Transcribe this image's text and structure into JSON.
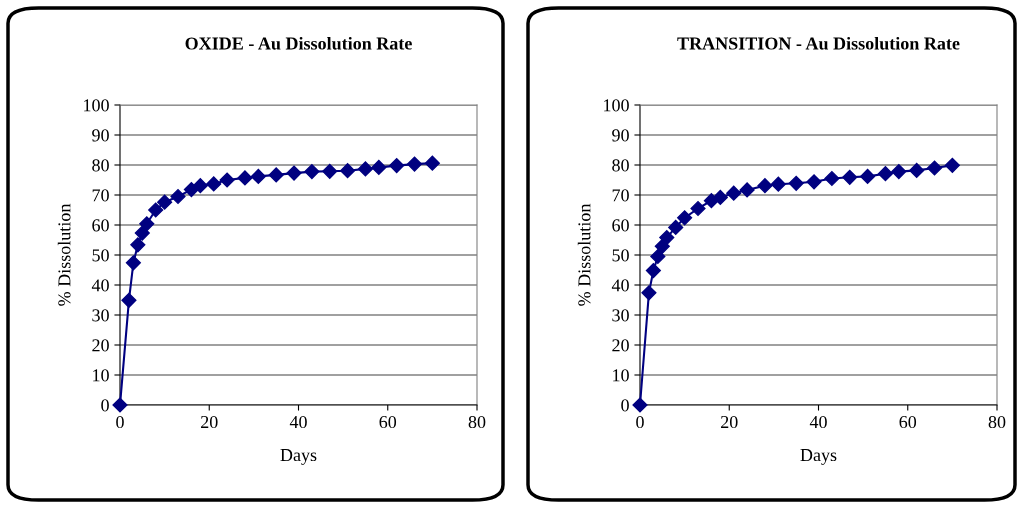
{
  "chart_data": [
    {
      "type": "line",
      "title": "OXIDE - Au Dissolution Rate",
      "xlabel": "Days",
      "ylabel": "% Dissolution",
      "xlim": [
        0,
        80
      ],
      "xticks": [
        0,
        20,
        40,
        60,
        80
      ],
      "ylim": [
        0,
        100
      ],
      "yticks": [
        0,
        10,
        20,
        30,
        40,
        50,
        60,
        70,
        80,
        90,
        100
      ],
      "grid": "y",
      "marker": "diamond",
      "line_style": "solid",
      "x": [
        0,
        2,
        3,
        4,
        5,
        6,
        8,
        10,
        13,
        16,
        18,
        21,
        24,
        28,
        31,
        35,
        39,
        43,
        47,
        51,
        55,
        58,
        62,
        66,
        70
      ],
      "series": [
        {
          "color": "#000080",
          "values": [
            0,
            34.9,
            47.4,
            53.4,
            57.3,
            60.4,
            65.0,
            67.6,
            69.5,
            71.8,
            73.1,
            73.7,
            75.0,
            75.7,
            76.2,
            76.7,
            77.3,
            77.8,
            77.9,
            78.1,
            78.7,
            79.2,
            79.8,
            80.3,
            80.6
          ]
        }
      ]
    },
    {
      "type": "line",
      "title": "TRANSITION - Au Dissolution Rate",
      "xlabel": "Days",
      "ylabel": "% Dissolution",
      "xlim": [
        0,
        80
      ],
      "xticks": [
        0,
        20,
        40,
        60,
        80
      ],
      "ylim": [
        0,
        100
      ],
      "yticks": [
        0,
        10,
        20,
        30,
        40,
        50,
        60,
        70,
        80,
        90,
        100
      ],
      "grid": "y",
      "marker": "diamond",
      "line_style": "solid",
      "x": [
        0,
        2,
        3,
        4,
        5,
        6,
        8,
        10,
        13,
        16,
        18,
        21,
        24,
        28,
        31,
        35,
        39,
        43,
        47,
        51,
        55,
        58,
        62,
        66,
        70
      ],
      "series": [
        {
          "color": "#000080",
          "values": [
            0,
            37.4,
            44.8,
            49.5,
            52.9,
            55.8,
            59.2,
            62.4,
            65.5,
            68.1,
            69.2,
            70.6,
            71.7,
            73.1,
            73.6,
            73.9,
            74.4,
            75.5,
            75.9,
            76.2,
            77.1,
            77.8,
            78.2,
            79.0,
            79.9
          ]
        }
      ]
    }
  ]
}
